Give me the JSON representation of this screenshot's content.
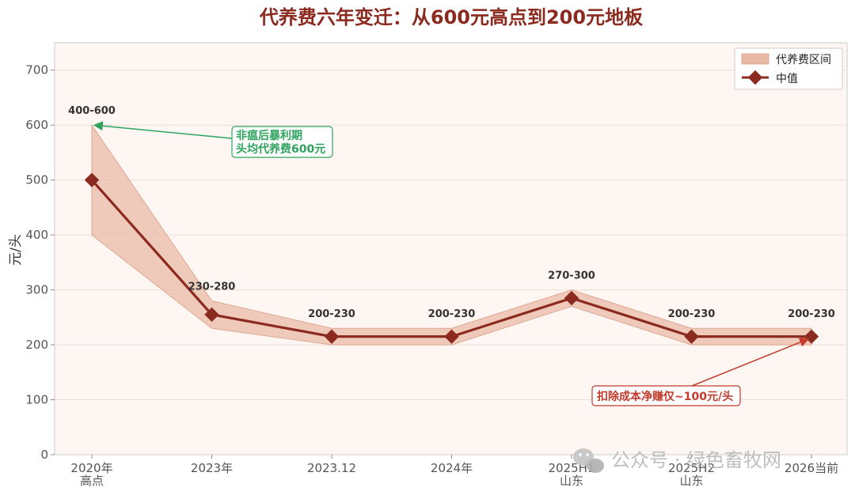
{
  "chart_data": {
    "type": "line",
    "title": "代养费六年变迁：从600元高点到200元地板",
    "ylabel": "元/头",
    "ylim": [
      0,
      750
    ],
    "yticks": [
      0,
      100,
      200,
      300,
      400,
      500,
      600,
      700
    ],
    "grid": true,
    "legend_position": "top-right",
    "categories": [
      [
        "2020年",
        "高点"
      ],
      [
        "2023年"
      ],
      [
        "2023.12"
      ],
      [
        "2024年"
      ],
      [
        "2025H1",
        "山东"
      ],
      [
        "2025H2",
        "山东"
      ],
      [
        "2026当前"
      ]
    ],
    "series": [
      {
        "name": "代养费区间",
        "kind": "band",
        "low": [
          400,
          230,
          200,
          200,
          270,
          200,
          200
        ],
        "high": [
          600,
          280,
          230,
          230,
          300,
          230,
          230
        ]
      },
      {
        "name": "中值",
        "kind": "line",
        "values": [
          500,
          255,
          215,
          215,
          285,
          215,
          215
        ]
      }
    ],
    "data_labels": [
      "400-600",
      "230-280",
      "200-230",
      "200-230",
      "270-300",
      "200-230",
      "200-230"
    ],
    "annotations": [
      {
        "lines": [
          "非瘟后暴利期",
          "头均代养费600元"
        ],
        "color": "#2EA35E",
        "target_index": 0,
        "target_value": 600
      },
      {
        "lines": [
          "扣除成本净赚仅~100元/头"
        ],
        "color": "#C23B2D",
        "target_index": 6,
        "target_value": 215
      }
    ],
    "colors": {
      "band": "#E9B9A5",
      "line": "#8B2A1E",
      "plot_bg": "#FDF6F2",
      "grid": "#EEDDD6"
    }
  },
  "watermark": {
    "text": "公众号 · 绿色畜牧网",
    "icon": "wechat-icon"
  }
}
